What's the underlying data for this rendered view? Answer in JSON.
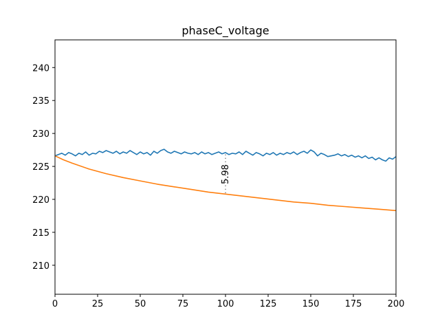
{
  "chart_data": {
    "type": "line",
    "title": "phaseC_voltage",
    "xlabel": "",
    "ylabel": "",
    "xlim": [
      0,
      200
    ],
    "ylim": [
      205.6,
      244.2
    ],
    "xticks": [
      0,
      25,
      50,
      75,
      100,
      125,
      150,
      175,
      200
    ],
    "yticks": [
      210,
      215,
      220,
      225,
      230,
      235,
      240
    ],
    "grid": false,
    "legend": "none",
    "series": [
      {
        "color": "#1f77b4",
        "x": [
          0,
          2,
          4,
          6,
          8,
          10,
          12,
          14,
          16,
          18,
          20,
          22,
          24,
          26,
          28,
          30,
          32,
          34,
          36,
          38,
          40,
          42,
          44,
          46,
          48,
          50,
          52,
          54,
          56,
          58,
          60,
          62,
          64,
          66,
          68,
          70,
          72,
          74,
          76,
          78,
          80,
          82,
          84,
          86,
          88,
          90,
          92,
          94,
          96,
          98,
          100,
          102,
          104,
          106,
          108,
          110,
          112,
          114,
          116,
          118,
          120,
          122,
          124,
          126,
          128,
          130,
          132,
          134,
          136,
          138,
          140,
          142,
          144,
          146,
          148,
          150,
          152,
          154,
          156,
          158,
          160,
          162,
          164,
          166,
          168,
          170,
          172,
          174,
          176,
          178,
          180,
          182,
          184,
          186,
          188,
          190,
          192,
          194,
          196,
          198,
          200
        ],
        "y": [
          226.6,
          226.8,
          227.0,
          226.7,
          227.1,
          226.9,
          226.6,
          227.0,
          226.8,
          227.2,
          226.7,
          227.0,
          226.9,
          227.3,
          227.1,
          227.4,
          227.2,
          227.0,
          227.3,
          226.9,
          227.2,
          227.0,
          227.4,
          227.1,
          226.8,
          227.2,
          226.9,
          227.1,
          226.7,
          227.3,
          227.0,
          227.4,
          227.6,
          227.2,
          227.0,
          227.3,
          227.1,
          226.9,
          227.2,
          227.0,
          226.9,
          227.1,
          226.8,
          227.2,
          226.9,
          227.1,
          226.8,
          227.0,
          227.2,
          226.9,
          227.1,
          226.8,
          227.0,
          226.9,
          227.2,
          226.8,
          227.3,
          227.0,
          226.7,
          227.1,
          226.9,
          226.6,
          227.0,
          226.8,
          227.1,
          226.7,
          227.0,
          226.8,
          227.1,
          226.9,
          227.2,
          226.8,
          227.1,
          227.3,
          227.0,
          227.5,
          227.2,
          226.6,
          227.0,
          226.8,
          226.5,
          226.6,
          226.7,
          226.9,
          226.6,
          226.8,
          226.5,
          226.7,
          226.4,
          226.6,
          226.3,
          226.6,
          226.2,
          226.4,
          226.0,
          226.3,
          226.0,
          225.8,
          226.3,
          226.1,
          226.5
        ]
      },
      {
        "color": "#ff7f0e",
        "x": [
          0,
          5,
          10,
          20,
          30,
          40,
          50,
          60,
          70,
          80,
          90,
          100,
          110,
          120,
          130,
          140,
          150,
          160,
          170,
          180,
          190,
          200
        ],
        "y": [
          226.6,
          226.0,
          225.5,
          224.6,
          223.9,
          223.3,
          222.8,
          222.3,
          221.9,
          221.5,
          221.1,
          220.8,
          220.5,
          220.2,
          219.9,
          219.6,
          219.4,
          219.1,
          218.9,
          218.7,
          218.5,
          218.3
        ]
      }
    ],
    "annotation": {
      "text": "5.98",
      "x": 100,
      "y_top": 226.8,
      "y_bottom": 220.8
    }
  }
}
